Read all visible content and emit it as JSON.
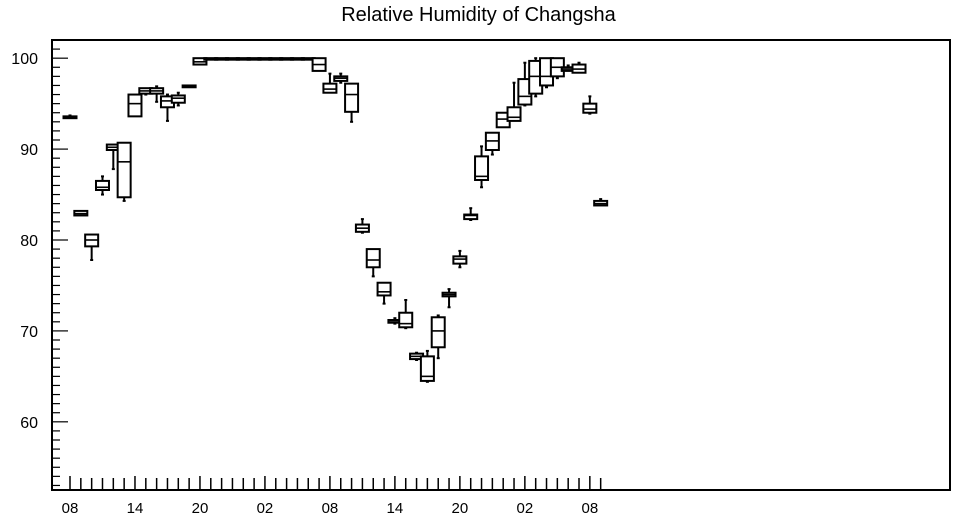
{
  "chart_data": {
    "type": "box",
    "title": "Relative Humidity of Changsha",
    "xlabel": "",
    "ylabel": "",
    "ylim": [
      52.5,
      102
    ],
    "y_ticks": [
      60,
      70,
      80,
      90,
      100
    ],
    "x_tick_labels": [
      "08",
      "14",
      "20",
      "02",
      "08",
      "14",
      "20",
      "02",
      "08"
    ],
    "grid": false,
    "legend": "none",
    "hours_start_label": "08",
    "series": [
      {
        "hour": 0,
        "min": 93.4,
        "q1": 93.4,
        "median": 93.5,
        "q3": 93.6,
        "max": 93.7
      },
      {
        "hour": 1,
        "min": 82.7,
        "q1": 82.7,
        "median": 82.9,
        "q3": 83.2,
        "max": 83.2
      },
      {
        "hour": 2,
        "min": 77.8,
        "q1": 79.3,
        "median": 80.0,
        "q3": 80.6,
        "max": 80.6
      },
      {
        "hour": 3,
        "min": 85.0,
        "q1": 85.5,
        "median": 85.8,
        "q3": 86.5,
        "max": 87.0
      },
      {
        "hour": 4,
        "min": 87.8,
        "q1": 89.9,
        "median": 90.2,
        "q3": 90.5,
        "max": 90.5
      },
      {
        "hour": 5,
        "min": 84.3,
        "q1": 84.7,
        "median": 88.6,
        "q3": 90.7,
        "max": 90.7
      },
      {
        "hour": 6,
        "min": 93.6,
        "q1": 93.6,
        "median": 95.0,
        "q3": 96.0,
        "max": 96.0
      },
      {
        "hour": 7,
        "min": 96.0,
        "q1": 96.1,
        "median": 96.4,
        "q3": 96.7,
        "max": 96.7
      },
      {
        "hour": 8,
        "min": 95.2,
        "q1": 96.1,
        "median": 96.4,
        "q3": 96.7,
        "max": 96.9
      },
      {
        "hour": 9,
        "min": 93.1,
        "q1": 94.6,
        "median": 95.3,
        "q3": 95.8,
        "max": 96.0
      },
      {
        "hour": 10,
        "min": 94.8,
        "q1": 95.1,
        "median": 95.6,
        "q3": 95.9,
        "max": 96.2
      },
      {
        "hour": 11,
        "min": 96.8,
        "q1": 96.8,
        "median": 96.9,
        "q3": 97.0,
        "max": 97.0
      },
      {
        "hour": 12,
        "min": 99.3,
        "q1": 99.3,
        "median": 99.6,
        "q3": 100,
        "max": 100
      },
      {
        "hour": 13,
        "min": 100,
        "q1": 100,
        "median": 100,
        "q3": 100,
        "max": 100
      },
      {
        "hour": 14,
        "min": 100,
        "q1": 100,
        "median": 100,
        "q3": 100,
        "max": 100
      },
      {
        "hour": 15,
        "min": 100,
        "q1": 100,
        "median": 100,
        "q3": 100,
        "max": 100
      },
      {
        "hour": 16,
        "min": 100,
        "q1": 100,
        "median": 100,
        "q3": 100,
        "max": 100
      },
      {
        "hour": 17,
        "min": 100,
        "q1": 100,
        "median": 100,
        "q3": 100,
        "max": 100
      },
      {
        "hour": 18,
        "min": 100,
        "q1": 100,
        "median": 100,
        "q3": 100,
        "max": 100
      },
      {
        "hour": 19,
        "min": 100,
        "q1": 100,
        "median": 100,
        "q3": 100,
        "max": 100
      },
      {
        "hour": 20,
        "min": 100,
        "q1": 100,
        "median": 100,
        "q3": 100,
        "max": 100
      },
      {
        "hour": 21,
        "min": 100,
        "q1": 100,
        "median": 100,
        "q3": 100,
        "max": 100
      },
      {
        "hour": 22,
        "min": 100,
        "q1": 100,
        "median": 100,
        "q3": 100,
        "max": 100
      },
      {
        "hour": 23,
        "min": 98.6,
        "q1": 98.6,
        "median": 99.3,
        "q3": 100,
        "max": 100
      },
      {
        "hour": 24,
        "min": 96.2,
        "q1": 96.2,
        "median": 96.6,
        "q3": 97.2,
        "max": 98.3
      },
      {
        "hour": 25,
        "min": 97.3,
        "q1": 97.5,
        "median": 97.8,
        "q3": 98.0,
        "max": 98.3
      },
      {
        "hour": 26,
        "min": 93.0,
        "q1": 94.1,
        "median": 96.0,
        "q3": 97.2,
        "max": 97.2
      },
      {
        "hour": 27,
        "min": 80.8,
        "q1": 80.9,
        "median": 81.3,
        "q3": 81.7,
        "max": 82.3
      },
      {
        "hour": 28,
        "min": 76.0,
        "q1": 77.0,
        "median": 77.8,
        "q3": 79.0,
        "max": 79.0
      },
      {
        "hour": 29,
        "min": 73.0,
        "q1": 73.9,
        "median": 74.3,
        "q3": 75.3,
        "max": 75.3
      },
      {
        "hour": 30,
        "min": 70.8,
        "q1": 70.9,
        "median": 71.1,
        "q3": 71.2,
        "max": 71.4
      },
      {
        "hour": 31,
        "min": 70.3,
        "q1": 70.4,
        "median": 70.8,
        "q3": 72.0,
        "max": 73.4
      },
      {
        "hour": 32,
        "min": 66.8,
        "q1": 66.9,
        "median": 67.2,
        "q3": 67.5,
        "max": 67.6
      },
      {
        "hour": 33,
        "min": 64.4,
        "q1": 64.5,
        "median": 65.0,
        "q3": 67.2,
        "max": 67.8
      },
      {
        "hour": 34,
        "min": 67.0,
        "q1": 68.2,
        "median": 70.0,
        "q3": 71.5,
        "max": 71.7
      },
      {
        "hour": 35,
        "min": 72.6,
        "q1": 73.8,
        "median": 74.0,
        "q3": 74.2,
        "max": 74.6
      },
      {
        "hour": 36,
        "min": 77.0,
        "q1": 77.4,
        "median": 77.9,
        "q3": 78.2,
        "max": 78.8
      },
      {
        "hour": 37,
        "min": 82.2,
        "q1": 82.3,
        "median": 82.7,
        "q3": 82.8,
        "max": 83.5
      },
      {
        "hour": 38,
        "min": 85.8,
        "q1": 86.6,
        "median": 87.0,
        "q3": 89.2,
        "max": 90.3
      },
      {
        "hour": 39,
        "min": 89.4,
        "q1": 89.9,
        "median": 90.9,
        "q3": 91.8,
        "max": 91.8
      },
      {
        "hour": 40,
        "min": 92.4,
        "q1": 92.4,
        "median": 93.3,
        "q3": 94.0,
        "max": 94.0
      },
      {
        "hour": 41,
        "min": 93.1,
        "q1": 93.1,
        "median": 93.5,
        "q3": 94.6,
        "max": 97.3
      },
      {
        "hour": 42,
        "min": 94.8,
        "q1": 94.9,
        "median": 95.8,
        "q3": 97.7,
        "max": 99.5
      },
      {
        "hour": 43,
        "min": 95.8,
        "q1": 96.1,
        "median": 98.0,
        "q3": 99.7,
        "max": 100
      },
      {
        "hour": 44,
        "min": 96.8,
        "q1": 97.0,
        "median": 98.0,
        "q3": 100,
        "max": 100
      },
      {
        "hour": 45,
        "min": 97.8,
        "q1": 98.0,
        "median": 99.0,
        "q3": 100,
        "max": 100
      },
      {
        "hour": 46,
        "min": 98.6,
        "q1": 98.6,
        "median": 98.8,
        "q3": 99.0,
        "max": 99.2
      },
      {
        "hour": 47,
        "min": 98.4,
        "q1": 98.4,
        "median": 98.8,
        "q3": 99.3,
        "max": 99.5
      },
      {
        "hour": 48,
        "min": 93.9,
        "q1": 94.0,
        "median": 94.4,
        "q3": 95.0,
        "max": 95.8
      },
      {
        "hour": 49,
        "min": 83.8,
        "q1": 83.8,
        "median": 84.0,
        "q3": 84.3,
        "max": 84.5
      }
    ]
  }
}
